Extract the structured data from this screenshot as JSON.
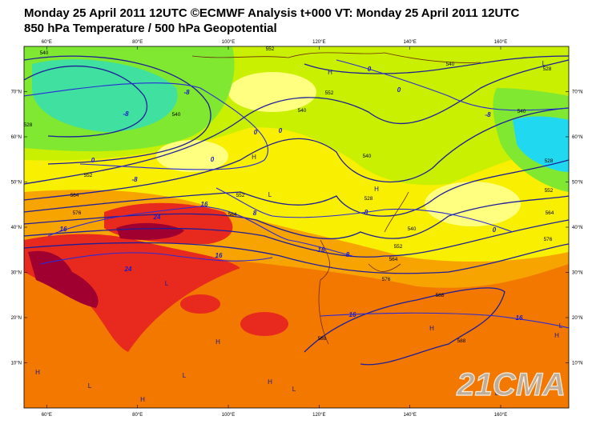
{
  "header": {
    "line1": "Monday 25 April 2011 12UTC ©ECMWF Analysis t+000 VT: Monday 25 April 2011 12UTC",
    "line2": "850 hPa Temperature / 500 hPa Geopotential"
  },
  "map": {
    "xlim": [
      55,
      175
    ],
    "ylim": [
      0,
      80
    ],
    "lon_ticks": [
      {
        "value": 60,
        "label": "60°E"
      },
      {
        "value": 80,
        "label": "80°E"
      },
      {
        "value": 100,
        "label": "100°E"
      },
      {
        "value": 120,
        "label": "120°E"
      },
      {
        "value": 140,
        "label": "140°E"
      },
      {
        "value": 160,
        "label": "160°E"
      }
    ],
    "lat_ticks": [
      {
        "value": 10,
        "label": "10°N"
      },
      {
        "value": 20,
        "label": "20°N"
      },
      {
        "value": 30,
        "label": "30°N"
      },
      {
        "value": 40,
        "label": "40°N"
      },
      {
        "value": 50,
        "label": "50°N"
      },
      {
        "value": 60,
        "label": "60°N"
      },
      {
        "value": 70,
        "label": "70°N"
      }
    ],
    "geopotential_labels": [
      540,
      552,
      540,
      528,
      552,
      540,
      528,
      540,
      552,
      564,
      576,
      552,
      564,
      540,
      528,
      540,
      552,
      564,
      576,
      588,
      588,
      588,
      540,
      528,
      552,
      564,
      576
    ],
    "temperature_labels": [
      0,
      0,
      -8,
      -8,
      -8,
      0,
      0,
      0,
      0,
      -8,
      8,
      16,
      24,
      16,
      24,
      16,
      8,
      16,
      0,
      16,
      16,
      8
    ],
    "pressure_centres": [
      "H",
      "L",
      "H",
      "L",
      "H",
      "L",
      "H",
      "H",
      "L",
      "L",
      "H",
      "H",
      "H",
      "L",
      "L",
      "H",
      "L"
    ],
    "watermark": "21CMA"
  }
}
